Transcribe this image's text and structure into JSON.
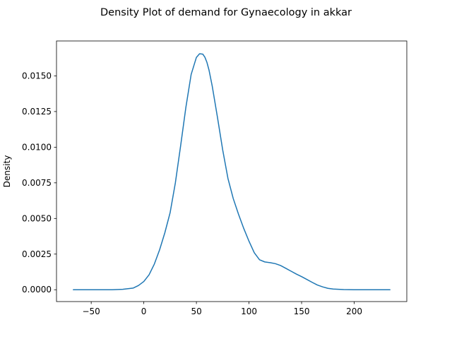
{
  "chart_data": {
    "type": "line",
    "title": "Density Plot of demand for Gynaecology in akkar",
    "xlabel": "",
    "ylabel": "Density",
    "xlim": [
      -83,
      250
    ],
    "ylim": [
      -0.00083,
      0.01745
    ],
    "xticks": [
      -50,
      0,
      50,
      100,
      150,
      200
    ],
    "xtick_labels": [
      "−50",
      "0",
      "50",
      "100",
      "150",
      "200"
    ],
    "yticks": [
      0.0,
      0.0025,
      0.005,
      0.0075,
      0.01,
      0.0125,
      0.015
    ],
    "ytick_labels": [
      "0.0000",
      "0.0025",
      "0.0050",
      "0.0075",
      "0.0100",
      "0.0125",
      "0.0150"
    ],
    "grid": false,
    "line_color": "#1f77b4",
    "series": [
      {
        "x": [
          -67,
          -50,
          -30,
          -20,
          -10,
          -5,
          0,
          5,
          10,
          15,
          20,
          25,
          30,
          35,
          40,
          45,
          50,
          53,
          56,
          58,
          60,
          62,
          65,
          70,
          75,
          80,
          85,
          90,
          95,
          100,
          105,
          110,
          115,
          120,
          125,
          130,
          135,
          140,
          145,
          150,
          155,
          160,
          165,
          170,
          175,
          180,
          190,
          200,
          210,
          220,
          234
        ],
        "y": [
          0.0,
          0.0,
          0.0,
          3e-05,
          0.00012,
          0.0003,
          0.00058,
          0.00105,
          0.0018,
          0.0028,
          0.004,
          0.0054,
          0.0075,
          0.0101,
          0.0128,
          0.0151,
          0.0163,
          0.01655,
          0.01653,
          0.01632,
          0.01595,
          0.0154,
          0.0143,
          0.0121,
          0.0098,
          0.0078,
          0.0064,
          0.0053,
          0.0043,
          0.0034,
          0.0026,
          0.0021,
          0.00195,
          0.0019,
          0.00183,
          0.0017,
          0.0015,
          0.0013,
          0.0011,
          0.00092,
          0.00072,
          0.00052,
          0.00033,
          0.0002,
          0.0001,
          5e-05,
          1e-05,
          0.0,
          0.0,
          0.0,
          0.0
        ]
      }
    ]
  }
}
